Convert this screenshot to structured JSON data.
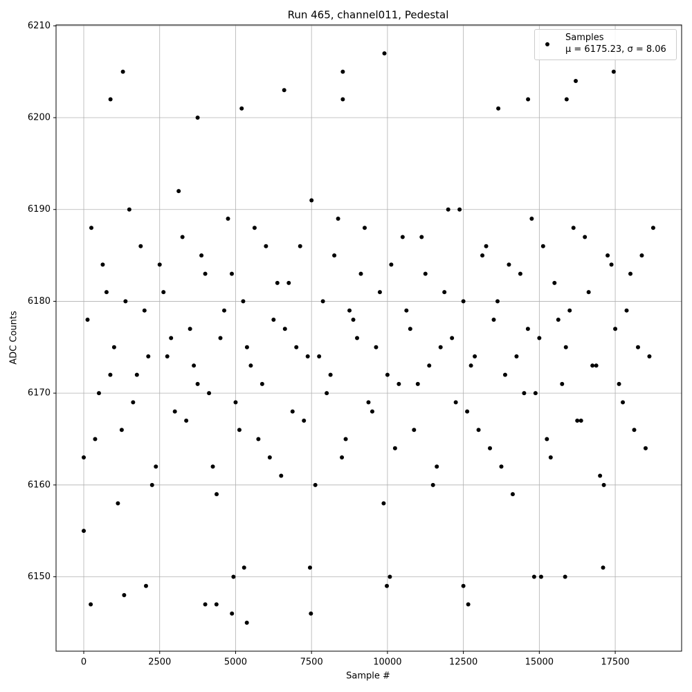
{
  "chart_data": {
    "type": "scatter",
    "title": "Run 465, channel011, Pedestal",
    "xlabel": "Sample #",
    "ylabel": "ADC Counts",
    "xlim": [
      -912,
      19686
    ],
    "ylim": [
      6141.9,
      6210.1
    ],
    "xticks": [
      0,
      2500,
      5000,
      7500,
      10000,
      12500,
      15000,
      17500
    ],
    "yticks": [
      6150,
      6160,
      6170,
      6180,
      6190,
      6200,
      6210
    ],
    "grid": true,
    "legend": "upper right",
    "x": [
      0,
      250,
      500,
      750,
      1000,
      1250,
      1500,
      1750,
      2000,
      2250,
      2500,
      2750,
      3000,
      3250,
      3500,
      3750,
      4000,
      4250,
      4500,
      4750,
      5000,
      5250,
      5500,
      5750,
      6000,
      6250,
      6500,
      6750,
      7000,
      7250,
      7500,
      7750,
      8000,
      8250,
      8500,
      8750,
      9000,
      9250,
      9500,
      9750,
      10000,
      10250,
      10500,
      10750,
      11000,
      11250,
      11500,
      11750,
      12000,
      12250,
      12500,
      12750,
      13000,
      13250,
      13500,
      13750,
      14000,
      14250,
      14500,
      14750,
      15000,
      15250,
      15500,
      15750,
      16000,
      16250,
      16500,
      16750,
      17000,
      17250,
      17500,
      17750,
      18000,
      18250,
      18500,
      18750,
      125,
      375,
      625,
      875,
      1125,
      1375,
      1625,
      1875,
      2125,
      2375,
      2625,
      2875,
      3125,
      3375,
      3625,
      3875,
      4125,
      4375,
      4625,
      4875,
      5125,
      5375,
      5625,
      5875,
      6125,
      6375,
      6625,
      6875,
      7125,
      7375,
      7625,
      7875,
      8125,
      8375,
      8625,
      8875,
      9125,
      9375,
      9625,
      9875,
      10125,
      10375,
      10625,
      10875,
      11125,
      11375,
      11625,
      11875,
      12125,
      12375,
      12625,
      12875,
      13125,
      13375,
      13625,
      13875,
      14125,
      14375,
      14625,
      14875,
      15125,
      15375,
      15625,
      15875,
      16125,
      16375,
      16625,
      16875,
      17125,
      17375,
      17625,
      17875,
      18125,
      18375,
      18625,
      0,
      230,
      1330,
      1290,
      880,
      2050,
      3750,
      4000,
      4370,
      4880,
      4930,
      5370,
      5200,
      6600,
      7480,
      7450,
      8530,
      8530,
      9900,
      9980,
      10080,
      12500,
      12660,
      13650,
      14630,
      14830,
      15060,
      15900,
      15850,
      16200,
      17450,
      17100,
      5280
    ],
    "series": [
      {
        "name": "Samples\nμ = 6175.23, σ = 8.06",
        "color": "#000000",
        "values": [
          6163,
          6188,
          6170,
          6181,
          6175,
          6166,
          6190,
          6172,
          6179,
          6160,
          6184,
          6174,
          6168,
          6187,
          6177,
          6171,
          6183,
          6162,
          6176,
          6189,
          6169,
          6180,
          6173,
          6165,
          6186,
          6178,
          6161,
          6182,
          6175,
          6167,
          6191,
          6174,
          6170,
          6185,
          6163,
          6179,
          6176,
          6188,
          6168,
          6181,
          6172,
          6164,
          6187,
          6177,
          6171,
          6183,
          6160,
          6175,
          6190,
          6169,
          6180,
          6173,
          6166,
          6186,
          6178,
          6162,
          6184,
          6174,
          6170,
          6189,
          6176,
          6165,
          6182,
          6171,
          6179,
          6167,
          6187,
          6173,
          6161,
          6185,
          6177,
          6169,
          6183,
          6175,
          6164,
          6188,
          6178,
          6165,
          6184,
          6172,
          6158,
          6180,
          6169,
          6186,
          6174,
          6162,
          6181,
          6176,
          6192,
          6167,
          6173,
          6185,
          6170,
          6159,
          6179,
          6183,
          6166,
          6175,
          6188,
          6171,
          6163,
          6182,
          6177,
          6168,
          6186,
          6174,
          6160,
          6180,
          6172,
          6189,
          6165,
          6178,
          6183,
          6169,
          6175,
          6158,
          6184,
          6171,
          6179,
          6166,
          6187,
          6173,
          6162,
          6181,
          6176,
          6190,
          6168,
          6174,
          6185,
          6164,
          6180,
          6172,
          6159,
          6183,
          6177,
          6170,
          6186,
          6163,
          6178,
          6175,
          6188,
          6167,
          6181,
          6173,
          6160,
          6184,
          6171,
          6179,
          6166,
          6185,
          6174,
          6155,
          6147,
          6148,
          6205,
          6202,
          6149,
          6200,
          6147,
          6147,
          6146,
          6150,
          6145,
          6201,
          6203,
          6146,
          6151,
          6205,
          6202,
          6207,
          6149,
          6150,
          6149,
          6147,
          6201,
          6202,
          6150,
          6150,
          6202,
          6150,
          6204,
          6205,
          6151,
          6151
        ]
      }
    ]
  }
}
